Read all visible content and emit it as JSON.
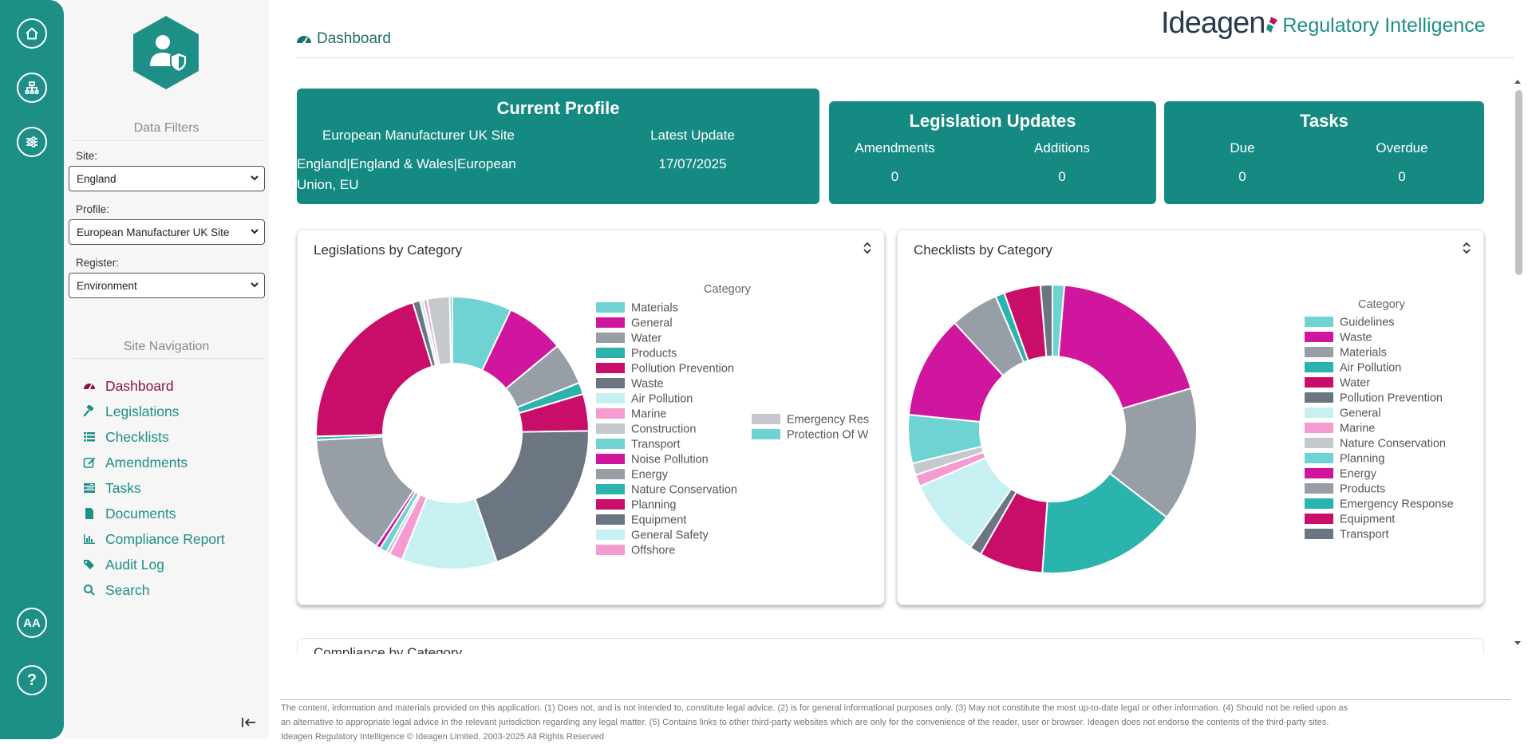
{
  "rail": {
    "accessibility_label": "AA",
    "help_label": "?"
  },
  "sidebar": {
    "data_filters_title": "Data Filters",
    "filters": [
      {
        "label": "Site:",
        "value": "England"
      },
      {
        "label": "Profile:",
        "value": "European Manufacturer UK Site"
      },
      {
        "label": "Register:",
        "value": "Environment"
      }
    ],
    "site_navigation_title": "Site Navigation",
    "nav": [
      {
        "label": "Dashboard",
        "icon": "dashboard-icon",
        "active": true
      },
      {
        "label": "Legislations",
        "icon": "gavel-icon"
      },
      {
        "label": "Checklists",
        "icon": "list-icon"
      },
      {
        "label": "Amendments",
        "icon": "edit-icon"
      },
      {
        "label": "Tasks",
        "icon": "tasks-icon"
      },
      {
        "label": "Documents",
        "icon": "file-icon"
      },
      {
        "label": "Compliance Report",
        "icon": "bar-chart-icon"
      },
      {
        "label": "Audit Log",
        "icon": "tags-icon"
      },
      {
        "label": "Search",
        "icon": "search-icon"
      }
    ]
  },
  "header": {
    "page_title": "Dashboard",
    "brand_name": "Ideagen",
    "brand_product": "Regulatory Intelligence"
  },
  "current_profile": {
    "title": "Current Profile",
    "profile_name": "European Manufacturer UK Site",
    "latest_update_label": "Latest Update",
    "jurisdictions_line1": "England|England & Wales|European",
    "jurisdictions_line2": "Union, EU",
    "latest_update_value": "17/07/2025"
  },
  "legislation_updates": {
    "title": "Legislation Updates",
    "amendments_label": "Amendments",
    "additions_label": "Additions",
    "amendments_value": "0",
    "additions_value": "0"
  },
  "tasks_card": {
    "title": "Tasks",
    "due_label": "Due",
    "overdue_label": "Overdue",
    "due_value": "0",
    "overdue_value": "0"
  },
  "panels": {
    "legislations_title": "Legislations by Category",
    "checklists_title": "Checklists by Category",
    "compliance_title": "Compliance by Category"
  },
  "chart_data": [
    {
      "type": "pie",
      "title": "Legislations by Category",
      "legend_title": "Category",
      "series": [
        {
          "name": "Materials",
          "value": 6.6,
          "color": "#6fd3d3"
        },
        {
          "name": "General",
          "value": 6.5,
          "color": "#d0159e"
        },
        {
          "name": "Water",
          "value": 4.7,
          "color": "#979ea5"
        },
        {
          "name": "Products",
          "value": 1.3,
          "color": "#2bb4ad"
        },
        {
          "name": "Pollution Prevention",
          "value": 4.1,
          "color": "#c90e6a"
        },
        {
          "name": "Waste",
          "value": 18.7,
          "color": "#6b7682"
        },
        {
          "name": "Air Pollution",
          "value": 10.6,
          "color": "#c6f0f2"
        },
        {
          "name": "Marine",
          "value": 1.5,
          "color": "#f59bd1"
        },
        {
          "name": "Construction",
          "value": 0.4,
          "color": "#c5c8cc"
        },
        {
          "name": "Transport",
          "value": 0.8,
          "color": "#6fd3d3"
        },
        {
          "name": "Noise Pollution",
          "value": 0.5,
          "color": "#d0159e"
        },
        {
          "name": "Energy",
          "value": 13.8,
          "color": "#979ea5"
        },
        {
          "name": "Nature Conservation",
          "value": 0.4,
          "color": "#2bb4ad"
        },
        {
          "name": "Planning",
          "value": 19.4,
          "color": "#c90e6a"
        },
        {
          "name": "Equipment",
          "value": 0.8,
          "color": "#6b7682"
        },
        {
          "name": "General Safety",
          "value": 0.4,
          "color": "#c6f0f2"
        },
        {
          "name": "Offshore",
          "value": 0.4,
          "color": "#f59bd1"
        },
        {
          "name": "Emergency Res",
          "value": 2.5,
          "color": "#c5c8cc"
        },
        {
          "name": "Protection Of W",
          "value": 0.3,
          "color": "#6fd3d3"
        }
      ]
    },
    {
      "type": "pie",
      "title": "Checklists by Category",
      "legend_title": "Category",
      "series": [
        {
          "name": "Guidelines",
          "value": 1.3,
          "color": "#6fd3d3"
        },
        {
          "name": "Waste",
          "value": 18.7,
          "color": "#d0159e"
        },
        {
          "name": "Materials",
          "value": 14.7,
          "color": "#979ea5"
        },
        {
          "name": "Air Pollution",
          "value": 15.3,
          "color": "#2bb4ad"
        },
        {
          "name": "Water",
          "value": 7.0,
          "color": "#c90e6a"
        },
        {
          "name": "Pollution Prevention",
          "value": 1.3,
          "color": "#6b7682"
        },
        {
          "name": "General",
          "value": 8.7,
          "color": "#c6f0f2"
        },
        {
          "name": "Marine",
          "value": 1.3,
          "color": "#f59bd1"
        },
        {
          "name": "Nature Conservation",
          "value": 1.3,
          "color": "#c5c8cc"
        },
        {
          "name": "Planning",
          "value": 5.3,
          "color": "#6fd3d3"
        },
        {
          "name": "Energy",
          "value": 11.3,
          "color": "#d0159e"
        },
        {
          "name": "Products",
          "value": 5.3,
          "color": "#979ea5"
        },
        {
          "name": "Emergency Response",
          "value": 1.0,
          "color": "#2bb4ad"
        },
        {
          "name": "Equipment",
          "value": 4.0,
          "color": "#c90e6a"
        },
        {
          "name": "Transport",
          "value": 1.3,
          "color": "#6b7682"
        }
      ]
    }
  ],
  "footer": {
    "line1": "The content, information and materials provided on this application. (1) Does not, and is not intended to, constitute legal advice. (2) is for general informational purposes only. (3) May not constitute the most up-to-date legal or other information. (4) Should not be relied upon as",
    "line2": "an alternative to appropriate legal advice in the relevant jurisdiction regarding any legal matter. (5) Contains links to other third-party websites which are only for the convenience of the reader, user or browser. Ideagen does not endorse the contents of the third-party sites.",
    "line3": "Ideagen Regulatory Intelligence © Ideagen Limited. 2003-2025 All Rights Reserved"
  }
}
